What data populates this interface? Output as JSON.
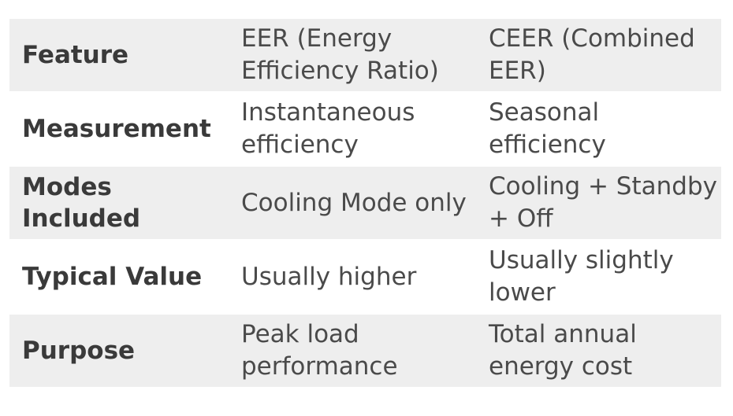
{
  "table": {
    "rows": [
      {
        "feature": "Feature",
        "eer": "EER (Energy Efficiency Ratio)",
        "ceer": "CEER (Combined EER)"
      },
      {
        "feature": "Measurement",
        "eer": "Instantaneous efficiency",
        "ceer": "Seasonal efficiency"
      },
      {
        "feature": "Modes Included",
        "eer": "Cooling Mode only",
        "ceer": "Cooling + Standby + Off"
      },
      {
        "feature": "Typical Value",
        "eer": "Usually higher",
        "ceer": "Usually slightly lower"
      },
      {
        "feature": "Purpose",
        "eer": "Peak load performance",
        "ceer": "Total annual energy cost"
      }
    ]
  },
  "colors": {
    "row_shaded": "#eeeeee",
    "row_plain": "#ffffff",
    "text": "#3d3d3d"
  }
}
